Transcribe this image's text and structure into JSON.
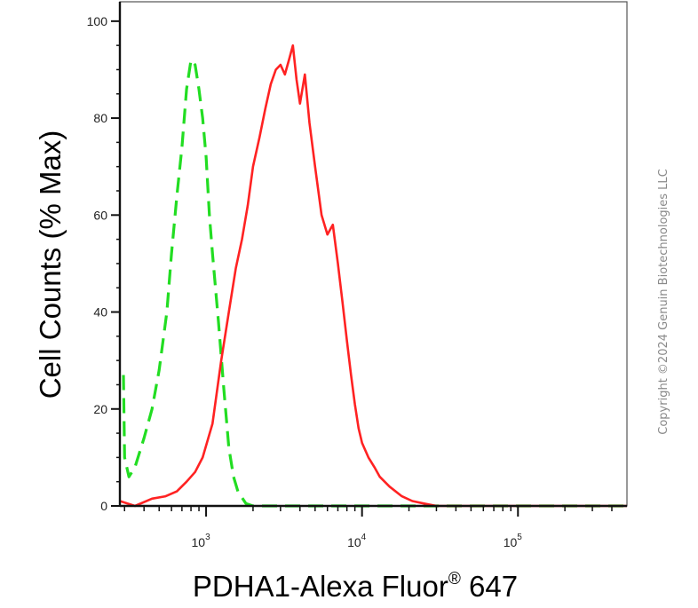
{
  "chart_data": {
    "type": "line",
    "title": "",
    "xlabel": "PDHA1-Alexa Fluor",
    "xlabel_superscript": "®",
    "xlabel_suffix": " 647",
    "ylabel": "Cell Counts (% Max)",
    "x_scale": "log",
    "xlim": [
      280,
      500000
    ],
    "ylim": [
      0,
      104
    ],
    "y_ticks": [
      0,
      20,
      40,
      60,
      80,
      100
    ],
    "x_major_ticks": [
      {
        "value": 1000,
        "base": "10",
        "exp": "3"
      },
      {
        "value": 10000,
        "base": "10",
        "exp": "4"
      },
      {
        "value": 100000,
        "base": "10",
        "exp": "5"
      }
    ],
    "grid": false,
    "legend": "none",
    "series": [
      {
        "color": "#22dd22",
        "style": "dashed",
        "x": [
          295,
          300,
          320,
          350,
          400,
          450,
          500,
          560,
          600,
          650,
          700,
          750,
          800,
          850,
          900,
          950,
          1000,
          1050,
          1100,
          1200,
          1300,
          1400,
          1500,
          1600,
          1800,
          2000,
          3000,
          10000,
          100000,
          500000
        ],
        "y": [
          27,
          10,
          6,
          8,
          14,
          20,
          28,
          40,
          52,
          64,
          74,
          86,
          92,
          91,
          86,
          80,
          72,
          60,
          52,
          38,
          24,
          12,
          6,
          3,
          0.5,
          0,
          0,
          0,
          0,
          0
        ]
      },
      {
        "color": "#ff2222",
        "style": "solid",
        "x": [
          280,
          350,
          450,
          550,
          650,
          750,
          850,
          950,
          1100,
          1250,
          1400,
          1550,
          1700,
          1850,
          2000,
          2200,
          2400,
          2600,
          2800,
          3000,
          3200,
          3400,
          3600,
          3800,
          4000,
          4300,
          4600,
          5000,
          5500,
          6000,
          6500,
          7000,
          7500,
          8000,
          8500,
          9000,
          9500,
          10000,
          11000,
          12000,
          13000,
          15000,
          18000,
          21000,
          25000,
          30000,
          35000,
          40000,
          50000,
          100000,
          500000
        ],
        "y": [
          1,
          0,
          1.5,
          2,
          3,
          5,
          7,
          10,
          17,
          30,
          40,
          49,
          55,
          62,
          70,
          76,
          82,
          87,
          90,
          91,
          89,
          92,
          95,
          88,
          83,
          89,
          79,
          70,
          60,
          56,
          58,
          50,
          42,
          34,
          27,
          21,
          16,
          13,
          10,
          8,
          6,
          4,
          2,
          1,
          0.5,
          0,
          0,
          0,
          0,
          0,
          0
        ]
      }
    ]
  },
  "copyright": "Copyright ©2024 Genuin Biotechnologies LLC"
}
